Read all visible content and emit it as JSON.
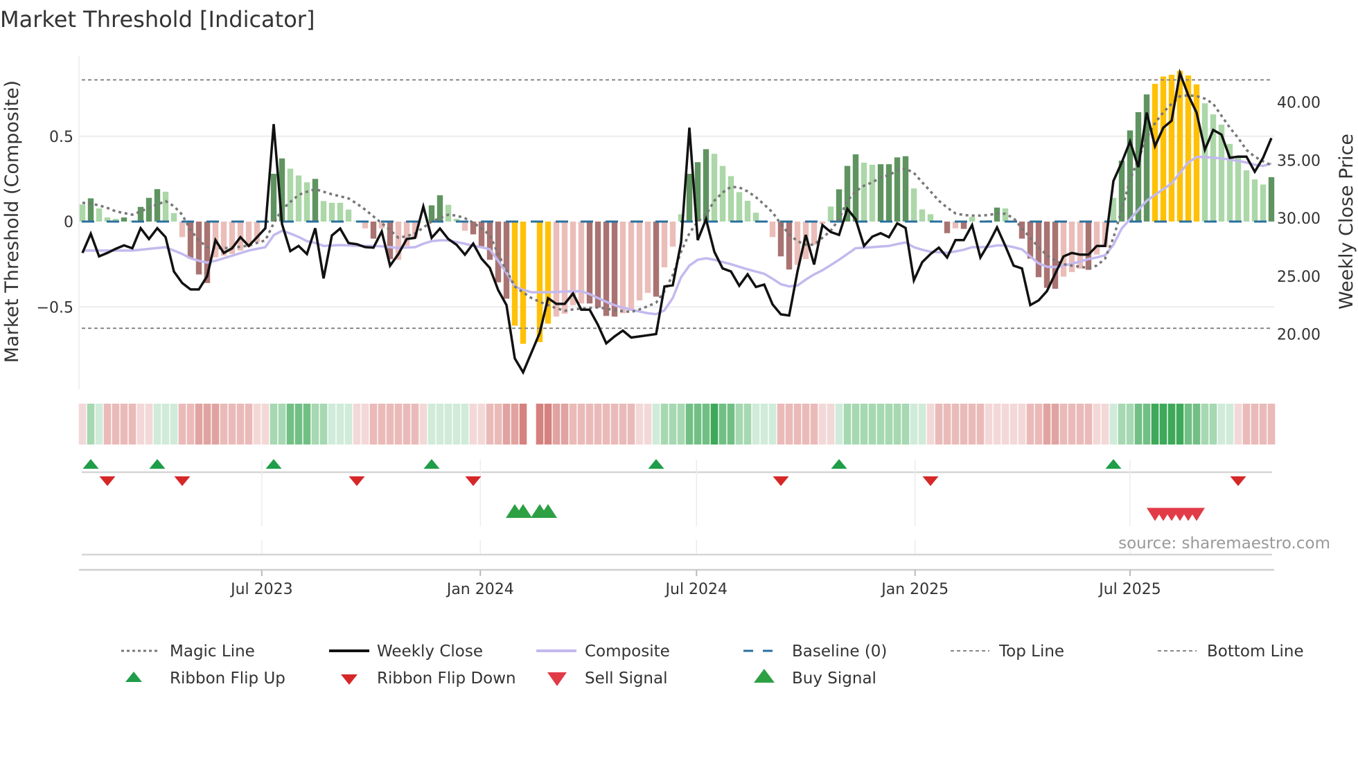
{
  "title": "Market Threshold [Indicator]",
  "source_note": "source: sharemaestro.com",
  "colors": {
    "bar_G": "#5f9460",
    "bar_g": "#acd7a8",
    "bar_R": "#a97372",
    "bar_r": "#ebbdb9",
    "bar_Y": "#ffc107",
    "close": "#111111",
    "composite": "#c3b9ee",
    "magic": "#777777",
    "baseline": "#2a6f9e",
    "threshold": "#888888",
    "flip_up": "#1f9d48",
    "flip_down": "#d62728",
    "buy": "#2ea044",
    "sell": "#e23b48",
    "ribbon_green": [
      "#d0ebd9",
      "#a6d8b2",
      "#72bf85",
      "#3ea95a"
    ],
    "ribbon_red": [
      "#f3d8d8",
      "#eabab9",
      "#e0a3a1",
      "#d5817f"
    ]
  },
  "chart_data": {
    "type": "bar+line",
    "title": "Market Threshold [Indicator]",
    "ylabel_left": "Market Threshold (Composite)",
    "ylabel_right": "Weekly Close Price",
    "ylim_left": [
      -0.98,
      0.97
    ],
    "ylim_right": [
      11.6,
      44.9
    ],
    "yticks_left": [
      {
        "v": 0.5,
        "label": "0.5"
      },
      {
        "v": 0,
        "label": "0"
      },
      {
        "v": -0.5,
        "label": "−0.5"
      }
    ],
    "yticks_right": [
      {
        "v": 40,
        "label": "40.00"
      },
      {
        "v": 35,
        "label": "35.00"
      },
      {
        "v": 30,
        "label": "30.00"
      },
      {
        "v": 25,
        "label": "25.00"
      },
      {
        "v": 20,
        "label": "20.00"
      }
    ],
    "xticks": [
      {
        "date": "2023-07-01",
        "label": "Jul 2023"
      },
      {
        "date": "2024-01-01",
        "label": "Jan 2024"
      },
      {
        "date": "2024-07-01",
        "label": "Jul 2024"
      },
      {
        "date": "2025-01-01",
        "label": "Jan 2025"
      },
      {
        "date": "2025-07-01",
        "label": "Jul 2025"
      }
    ],
    "start_date": "2023-01-31",
    "frequency": "weekly",
    "top_line": 0.83,
    "bottom_line": -0.625,
    "baseline": 0,
    "histogram": [
      0.1,
      0.136,
      0.077,
      0.024,
      0.016,
      0.024,
      0.005,
      0.086,
      0.139,
      0.19,
      0.175,
      0.05,
      -0.091,
      -0.217,
      -0.31,
      -0.36,
      -0.21,
      -0.2,
      -0.19,
      -0.17,
      -0.15,
      -0.12,
      0,
      0.28,
      0.37,
      0.31,
      0.27,
      0.23,
      0.25,
      0.12,
      0.11,
      0.11,
      0.07,
      0.005,
      -0.04,
      -0.1,
      -0.04,
      -0.22,
      -0.224,
      -0.143,
      -0.095,
      0,
      0.095,
      0.154,
      0.098,
      0.016,
      -0.054,
      -0.075,
      -0.145,
      -0.224,
      -0.356,
      -0.452,
      -0.61,
      -0.716,
      null,
      -0.706,
      -0.598,
      -0.557,
      -0.54,
      -0.49,
      -0.48,
      -0.48,
      -0.505,
      -0.553,
      -0.557,
      -0.537,
      -0.523,
      -0.462,
      -0.418,
      -0.44,
      -0.268,
      -0.147,
      0.043,
      0.28,
      0.348,
      0.424,
      0.397,
      0.326,
      0.266,
      0.173,
      0.122,
      0.052,
      0,
      -0.091,
      -0.204,
      -0.281,
      -0.254,
      -0.22,
      -0.136,
      -0.014,
      0.088,
      0.189,
      0.326,
      0.394,
      0.345,
      0.333,
      0.336,
      0.336,
      0.376,
      0.383,
      0.194,
      0.071,
      0.043,
      0,
      -0.068,
      -0.04,
      -0.043,
      0.027,
      0,
      0.008,
      0.082,
      0.077,
      0,
      -0.1,
      -0.217,
      -0.326,
      -0.388,
      -0.394,
      -0.323,
      -0.296,
      -0.276,
      -0.283,
      -0.193,
      -0.15,
      0.139,
      0.357,
      0.534,
      0.641,
      0.745,
      0.807,
      0.85,
      0.86,
      0.883,
      0.856,
      0.804,
      0.693,
      0.628,
      0.568,
      0.455,
      0.38,
      0.3,
      0.247,
      0.217,
      0.26
    ],
    "histogram_state": "gGgggGgGGGggrRRRrrrrrrgGGgggGgggggrRrRrrrgGGggrRRRRRYY-YYrrrrRRRRrrrrRrrgGGGgggggggrRRrrrrgGGGggGGGGggggRrRgggGggRRRRRrrrRrrgGGGGYYYYYYggggggggG",
    "weekly_close": [
      27.0,
      28.65,
      26.7,
      27.0,
      27.35,
      27.65,
      27.4,
      29.13,
      28.2,
      29.13,
      28.35,
      25.4,
      24.4,
      23.85,
      23.85,
      25.0,
      28.1,
      27.0,
      27.4,
      28.35,
      27.6,
      28.35,
      29.13,
      38.1,
      29.5,
      27.15,
      27.6,
      26.9,
      29.13,
      24.8,
      28.5,
      29.1,
      27.85,
      27.75,
      27.5,
      27.45,
      28.85,
      25.9,
      26.9,
      28.2,
      28.3,
      31.0,
      28.3,
      29.1,
      28.2,
      27.7,
      26.85,
      27.8,
      26.5,
      25.7,
      23.8,
      22.5,
      17.9,
      16.7,
      18.4,
      20.1,
      23.1,
      22.6,
      22.6,
      23.5,
      22.1,
      22.1,
      20.8,
      19.2,
      19.8,
      20.3,
      19.7,
      19.8,
      19.9,
      20.0,
      24.1,
      24.2,
      27.9,
      37.8,
      28.1,
      29.9,
      27.1,
      25.66,
      25.4,
      24.17,
      25.15,
      24.06,
      24.27,
      22.56,
      21.7,
      21.6,
      25.4,
      28.55,
      26.0,
      29.4,
      28.8,
      28.55,
      30.8,
      29.9,
      27.6,
      28.4,
      28.7,
      28.35,
      29.55,
      29.15,
      24.63,
      26.2,
      26.9,
      27.45,
      26.6,
      28.1,
      28.1,
      29.4,
      26.6,
      27.8,
      29.2,
      27.6,
      25.9,
      25.66,
      22.5,
      22.9,
      23.7,
      25.2,
      26.7,
      27.0,
      26.85,
      26.85,
      27.6,
      27.6,
      33.2,
      34.8,
      36.6,
      34.4,
      39.1,
      36.2,
      37.8,
      38.4,
      42.5,
      40.6,
      39.1,
      35.9,
      37.6,
      37.2,
      35.2,
      35.3,
      35.3,
      34.0,
      35.2,
      36.9
    ],
    "composite": [
      -0.17,
      -0.17,
      -0.17,
      -0.17,
      -0.17,
      -0.17,
      -0.17,
      -0.165,
      -0.16,
      -0.155,
      -0.15,
      -0.17,
      -0.19,
      -0.215,
      -0.23,
      -0.24,
      -0.23,
      -0.215,
      -0.2,
      -0.185,
      -0.17,
      -0.16,
      -0.15,
      -0.08,
      -0.054,
      -0.07,
      -0.09,
      -0.115,
      -0.125,
      -0.143,
      -0.14,
      -0.138,
      -0.14,
      -0.142,
      -0.143,
      -0.143,
      -0.145,
      -0.15,
      -0.155,
      -0.152,
      -0.15,
      -0.13,
      -0.115,
      -0.11,
      -0.11,
      -0.12,
      -0.13,
      -0.143,
      -0.15,
      -0.163,
      -0.23,
      -0.3,
      -0.38,
      -0.4,
      -0.414,
      -0.414,
      -0.414,
      -0.412,
      -0.41,
      -0.409,
      -0.408,
      -0.425,
      -0.448,
      -0.47,
      -0.49,
      -0.505,
      -0.516,
      -0.527,
      -0.537,
      -0.543,
      -0.52,
      -0.448,
      -0.326,
      -0.258,
      -0.224,
      -0.215,
      -0.224,
      -0.237,
      -0.25,
      -0.265,
      -0.28,
      -0.293,
      -0.306,
      -0.335,
      -0.367,
      -0.38,
      -0.375,
      -0.34,
      -0.31,
      -0.285,
      -0.255,
      -0.224,
      -0.19,
      -0.156,
      -0.153,
      -0.15,
      -0.146,
      -0.143,
      -0.132,
      -0.122,
      -0.15,
      -0.165,
      -0.177,
      -0.18,
      -0.183,
      -0.175,
      -0.165,
      -0.15,
      -0.15,
      -0.148,
      -0.14,
      -0.14,
      -0.15,
      -0.163,
      -0.204,
      -0.245,
      -0.265,
      -0.267,
      -0.258,
      -0.247,
      -0.234,
      -0.22,
      -0.21,
      -0.197,
      -0.136,
      -0.04,
      0.014,
      0.068,
      0.122,
      0.156,
      0.19,
      0.224,
      0.285,
      0.346,
      0.378,
      0.378,
      0.374,
      0.37,
      0.364,
      0.355,
      0.346,
      0.333,
      0.326,
      0.34
    ],
    "magic_line": [
      0.11,
      0.105,
      0.095,
      0.08,
      0.06,
      0.05,
      0.04,
      0.06,
      0.08,
      0.1,
      0.12,
      0.09,
      0.04,
      -0.05,
      -0.11,
      -0.15,
      -0.155,
      -0.156,
      -0.152,
      -0.148,
      -0.14,
      -0.125,
      -0.11,
      -0.01,
      0.07,
      0.115,
      0.156,
      0.175,
      0.19,
      0.175,
      0.16,
      0.148,
      0.136,
      0.105,
      0.07,
      0.03,
      -0.01,
      -0.05,
      -0.095,
      -0.085,
      -0.07,
      -0.035,
      0,
      0.02,
      0.04,
      0.035,
      0.02,
      -0.007,
      -0.04,
      -0.08,
      -0.19,
      -0.285,
      -0.38,
      -0.415,
      -0.448,
      -0.47,
      -0.49,
      -0.508,
      -0.523,
      -0.515,
      -0.51,
      -0.506,
      -0.503,
      -0.51,
      -0.52,
      -0.525,
      -0.53,
      -0.515,
      -0.496,
      -0.475,
      -0.408,
      -0.313,
      -0.177,
      -0.068,
      0,
      0.04,
      0.122,
      0.17,
      0.204,
      0.2,
      0.177,
      0.143,
      0.1,
      0.054,
      -0.014,
      -0.075,
      -0.115,
      -0.136,
      -0.136,
      -0.095,
      -0.054,
      0.014,
      0.122,
      0.177,
      0.21,
      0.23,
      0.258,
      0.272,
      0.3,
      0.31,
      0.285,
      0.23,
      0.177,
      0.122,
      0.082,
      0.048,
      0.038,
      0.035,
      0.035,
      0.038,
      0.048,
      0.045,
      0.02,
      -0.04,
      -0.095,
      -0.15,
      -0.197,
      -0.23,
      -0.25,
      -0.258,
      -0.265,
      -0.272,
      -0.258,
      -0.217,
      -0.095,
      0.068,
      0.245,
      0.367,
      0.49,
      0.577,
      0.64,
      0.69,
      0.734,
      0.74,
      0.735,
      0.72,
      0.69,
      0.62,
      0.55,
      0.49,
      0.42,
      0.38,
      0.353,
      0.33
    ],
    "ribbon": [
      -1,
      2,
      1,
      -2,
      -2,
      -2,
      -2,
      -1,
      -1,
      1,
      1,
      1,
      -2,
      -2,
      -3,
      -3,
      -3,
      -2,
      -2,
      -2,
      -2,
      -1,
      -1,
      2,
      2,
      3,
      3,
      3,
      2,
      2,
      1,
      1,
      1,
      -1,
      -1,
      -2,
      -2,
      -2,
      -2,
      -2,
      -2,
      -1,
      1,
      1,
      1,
      1,
      1,
      -1,
      -1,
      -2,
      -2,
      -3,
      -3,
      -4,
      null,
      -4,
      -4,
      -3,
      -3,
      -2,
      -2,
      -2,
      -2,
      -2,
      -2,
      -2,
      -2,
      -1,
      -1,
      1,
      2,
      2,
      2,
      3,
      3,
      3,
      4,
      3,
      3,
      2,
      2,
      1,
      1,
      1,
      -2,
      -2,
      -2,
      -2,
      -2,
      -1,
      -1,
      1,
      2,
      2,
      2,
      2,
      2,
      2,
      2,
      2,
      1,
      1,
      -1,
      -2,
      -2,
      -2,
      -2,
      -2,
      -2,
      -1,
      -1,
      -1,
      -1,
      -1,
      -2,
      -2,
      -3,
      -3,
      -2,
      -2,
      -2,
      -2,
      -1,
      -1,
      1,
      2,
      2,
      3,
      3,
      4,
      4,
      4,
      4,
      3,
      3,
      2,
      2,
      1,
      1,
      -1,
      -2,
      -2,
      -2,
      -2
    ],
    "ribbon_flip_up_weeks": [
      1,
      9,
      23,
      42,
      69,
      91,
      124
    ],
    "ribbon_flip_down_weeks": [
      3,
      12,
      33,
      47,
      84,
      102,
      139
    ],
    "buy_signal_weeks": [
      52,
      53,
      55,
      56
    ],
    "sell_signal_weeks": [
      129,
      130,
      131,
      132,
      133,
      134
    ],
    "legend": {
      "placement": "bottom",
      "items": [
        "Magic Line",
        "Weekly Close",
        "Composite",
        "Baseline (0)",
        "Top Line",
        "Bottom Line",
        "Ribbon Flip Up",
        "Ribbon Flip Down",
        "Sell Signal",
        "Buy Signal"
      ]
    }
  }
}
